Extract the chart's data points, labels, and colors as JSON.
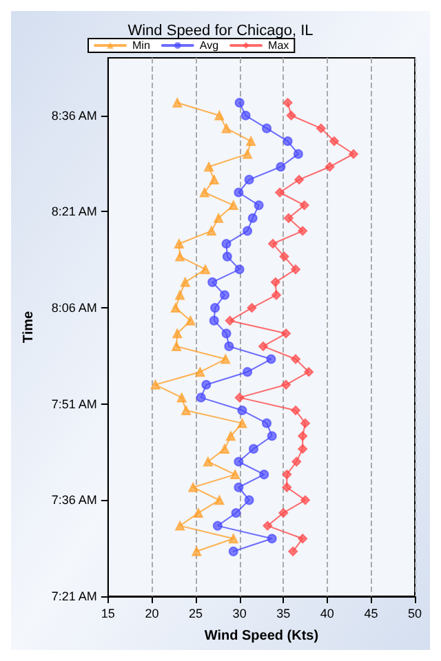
{
  "chart_data": {
    "type": "line",
    "title": "Wind Speed for Chicago, IL",
    "xlabel": "Wind Speed (Kts)",
    "ylabel": "Time",
    "orientation": "horizontal",
    "x": [
      7.4667,
      7.5,
      7.5333,
      7.5667,
      7.6,
      7.6333,
      7.6667,
      7.7,
      7.7333,
      7.7667,
      7.8,
      7.8333,
      7.8667,
      7.9,
      7.9333,
      7.9667,
      8.0,
      8.0333,
      8.0667,
      8.1,
      8.1333,
      8.1667,
      8.2,
      8.2333,
      8.2667,
      8.3,
      8.3333,
      8.3667,
      8.4,
      8.4333,
      8.4667,
      8.5,
      8.5333,
      8.5667,
      8.6,
      8.6333
    ],
    "series": [
      {
        "name": "Min",
        "color": "#ffa028",
        "marker": "triangle",
        "values": [
          25.1,
          29.3,
          23.2,
          25.3,
          27.7,
          24.7,
          29.5,
          26.4,
          28.3,
          29.0,
          30.3,
          23.9,
          23.4,
          20.4,
          25.5,
          28.4,
          22.8,
          22.9,
          24.4,
          22.7,
          23.2,
          23.8,
          26.1,
          23.2,
          23.1,
          26.8,
          27.6,
          29.3,
          26.0,
          27.1,
          26.5,
          30.9,
          31.3,
          28.5,
          27.7,
          22.9
        ]
      },
      {
        "name": "Avg",
        "color": "#4848ff",
        "marker": "circle",
        "values": [
          29.3,
          33.7,
          27.5,
          29.6,
          31.1,
          29.9,
          32.8,
          29.9,
          31.6,
          33.7,
          33.1,
          30.3,
          25.6,
          26.2,
          30.9,
          33.6,
          28.8,
          28.5,
          27.1,
          27.2,
          28.3,
          26.9,
          30.0,
          28.6,
          28.5,
          30.9,
          31.5,
          32.2,
          29.9,
          31.1,
          34.7,
          36.7,
          35.5,
          33.1,
          30.7,
          30.0
        ]
      },
      {
        "name": "Max",
        "color": "#ff4848",
        "marker": "diamond",
        "values": [
          36.1,
          37.2,
          33.2,
          35.0,
          37.5,
          35.4,
          35.4,
          36.5,
          37.2,
          37.2,
          37.5,
          36.4,
          30.0,
          35.3,
          37.9,
          36.4,
          32.7,
          35.3,
          28.9,
          31.4,
          34.2,
          34.1,
          36.4,
          35.1,
          33.8,
          37.2,
          35.6,
          37.4,
          34.6,
          36.8,
          40.3,
          43.0,
          40.8,
          39.3,
          35.9,
          35.5
        ]
      }
    ],
    "xlim": [
      15,
      50
    ],
    "xticks": [
      15,
      20,
      25,
      30,
      35,
      40,
      45,
      50
    ],
    "ylim": [
      7.35,
      8.75
    ],
    "yticks": [
      {
        "value": 7.35,
        "label": "7:21 AM"
      },
      {
        "value": 7.6,
        "label": "7:36 AM"
      },
      {
        "value": 7.85,
        "label": "7:51 AM"
      },
      {
        "value": 8.1,
        "label": "8:06 AM"
      },
      {
        "value": 8.35,
        "label": "8:21 AM"
      },
      {
        "value": 8.6,
        "label": "8:36 AM"
      }
    ],
    "grid": "x",
    "legend": "top left",
    "line_style": "solid"
  }
}
